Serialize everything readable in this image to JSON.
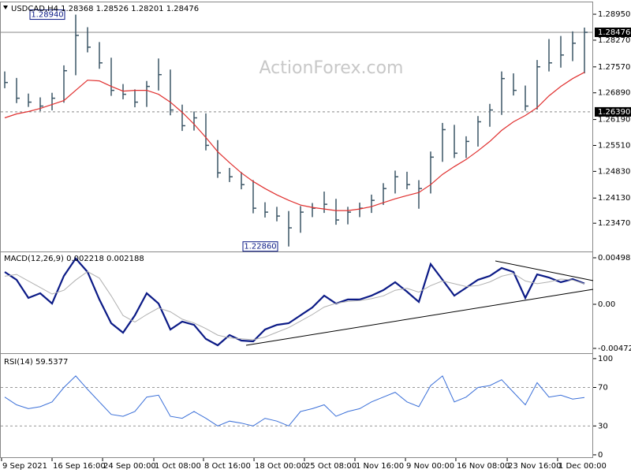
{
  "chart_data": [
    {
      "type": "ohlc",
      "title": "USDCAD,H4  1.28368 1.28526 1.28201 1.28476",
      "watermark": "ActionForex.com",
      "color": "#3b5566",
      "xlim": [
        -0.4,
        49.6
      ],
      "ylim": [
        1.2275,
        1.2922
      ],
      "yticks": [
        {
          "value": 1.2895,
          "label": "1.28950"
        },
        {
          "value": 1.2827,
          "label": "1.28270"
        },
        {
          "value": 1.2757,
          "label": "1.27570"
        },
        {
          "value": 1.2689,
          "label": "1.26890"
        },
        {
          "value": 1.2619,
          "label": "1.26190"
        },
        {
          "value": 1.2551,
          "label": "1.25510"
        },
        {
          "value": 1.2483,
          "label": "1.24830"
        },
        {
          "value": 1.2413,
          "label": "1.24130"
        },
        {
          "value": 1.2347,
          "label": "1.23470"
        }
      ],
      "high": [
        1.2745,
        1.2728,
        1.2687,
        1.2677,
        1.2689,
        1.2761,
        1.2894,
        1.2861,
        1.2822,
        1.2781,
        1.2712,
        1.2698,
        1.272,
        1.2779,
        1.275,
        1.2658,
        1.264,
        1.2635,
        1.2565,
        1.2492,
        1.2481,
        1.246,
        1.2402,
        1.239,
        1.2379,
        1.2392,
        1.24,
        1.243,
        1.2411,
        1.239,
        1.2401,
        1.2422,
        1.2452,
        1.2485,
        1.2482,
        1.246,
        1.2535,
        1.261,
        1.2605,
        1.2575,
        1.2628,
        1.266,
        1.2745,
        1.274,
        1.2708,
        1.2775,
        1.283,
        1.2838,
        1.285,
        1.286
      ],
      "low": [
        1.2701,
        1.2662,
        1.2652,
        1.2641,
        1.2643,
        1.2663,
        1.2735,
        1.2795,
        1.2752,
        1.2681,
        1.2672,
        1.2651,
        1.2652,
        1.2695,
        1.263,
        1.2589,
        1.259,
        1.2538,
        1.2466,
        1.2455,
        1.2436,
        1.2373,
        1.2362,
        1.2352,
        1.2286,
        1.2322,
        1.2363,
        1.2374,
        1.2343,
        1.2344,
        1.2363,
        1.2374,
        1.2395,
        1.2425,
        1.2436,
        1.2385,
        1.2425,
        1.2508,
        1.2518,
        1.2518,
        1.2548,
        1.26,
        1.2631,
        1.2682,
        1.2642,
        1.2645,
        1.2745,
        1.2755,
        1.2772,
        1.274
      ],
      "close": [
        1.2716,
        1.26748,
        1.26645,
        1.26542,
        1.26748,
        1.27469,
        1.28396,
        1.28087,
        1.27675,
        1.26954,
        1.26851,
        1.26645,
        1.27057,
        1.27366,
        1.26439,
        1.26027,
        1.26233,
        1.25512,
        1.24791,
        1.24688,
        1.24482,
        1.23864,
        1.23761,
        1.23658,
        1.23349,
        1.23761,
        1.23864,
        1.23967,
        1.23555,
        1.23761,
        1.23864,
        1.2407,
        1.24379,
        1.24688,
        1.24482,
        1.24379,
        1.25203,
        1.25924,
        1.25306,
        1.25615,
        1.2613,
        1.26439,
        1.27263,
        1.26954,
        1.26542,
        1.27572,
        1.27675,
        1.27881,
        1.2819,
        1.28476
      ],
      "lines": [
        {
          "color": "#e0302f",
          "values": [
            1.26233,
            1.26336,
            1.26398,
            1.2648,
            1.26583,
            1.26686,
            1.26954,
            1.27222,
            1.27202,
            1.27057,
            1.26934,
            1.26954,
            1.26954,
            1.26851,
            1.26645,
            1.26377,
            1.26068,
            1.25718,
            1.25347,
            1.25059,
            1.24791,
            1.24564,
            1.24379,
            1.24214,
            1.2407,
            1.23946,
            1.23885,
            1.23843,
            1.23802,
            1.23802,
            1.23843,
            1.23905,
            1.24008,
            1.24111,
            1.24194,
            1.24276,
            1.24482,
            1.2475,
            1.24956,
            1.25141,
            1.25368,
            1.25615,
            1.25904,
            1.2613,
            1.26295,
            1.26501,
            1.2681,
            1.27057,
            1.27263,
            1.27428
          ]
        }
      ],
      "hlines": [
        {
          "value": 1.28476,
          "label": "1.28476",
          "style": "solid"
        },
        {
          "value": 1.2639,
          "label": "1.26390",
          "style": "dashed"
        }
      ],
      "annotations": [
        {
          "value": 1.2894,
          "label": "1.28940"
        },
        {
          "value": 1.2286,
          "label": "1.22860"
        }
      ]
    },
    {
      "type": "line",
      "title": "MACD(12,26,9) 0.002218 0.002188",
      "xlim": [
        -0.4,
        49.6
      ],
      "ylim": [
        -0.00515,
        0.00557
      ],
      "yticks": [
        0.00498,
        {
          "value": 0,
          "label": "0.00"
        },
        -0.004723
      ],
      "series": [
        {
          "color": "#0b1a86",
          "values": [
            0.00346,
            0.00262,
            0.00068,
            0.00118,
            8e-05,
            0.00304,
            0.0049,
            0.00346,
            0.00051,
            -0.00203,
            -0.00304,
            -0.00118,
            0.00118,
            8e-05,
            -0.0027,
            -0.00186,
            -0.0022,
            -0.00371,
            -0.00439,
            -0.00329,
            -0.00388,
            -0.00397,
            -0.0027,
            -0.0022,
            -0.00203,
            -0.00118,
            -0.00034,
            0.00093,
            8e-05,
            0.00051,
            0.00051,
            0.00093,
            0.00152,
            0.00236,
            0.00135,
            0.00025,
            0.0043,
            0.00262,
            0.00093,
            0.00177,
            0.00262,
            0.00304,
            0.00388,
            0.00346,
            0.00068,
            0.00321,
            0.00287,
            0.00236,
            0.0027,
            0.00222
          ]
        },
        {
          "color": "#b0b0b0",
          "values": [
            0.003,
            0.0032,
            0.0025,
            0.0018,
            0.0011,
            0.0015,
            0.0026,
            0.0035,
            0.0028,
            0.0009,
            -0.0012,
            -0.0019,
            -0.0011,
            -0.0004,
            -0.0008,
            -0.0016,
            -0.002,
            -0.0026,
            -0.0033,
            -0.0036,
            -0.0037,
            -0.0038,
            -0.0035,
            -0.003,
            -0.0025,
            -0.0018,
            -0.0011,
            -0.0003,
            0.0001,
            0.0003,
            0.0004,
            0.0006,
            0.0009,
            0.0015,
            0.0017,
            0.0013,
            0.002,
            0.0025,
            0.0022,
            0.0019,
            0.002,
            0.0024,
            0.003,
            0.0033,
            0.0025,
            0.0022,
            0.0024,
            0.0027,
            0.0026,
            0.00219
          ]
        }
      ]
    },
    {
      "type": "line",
      "title": "RSI(14) 59.5377",
      "xlim": [
        -0.4,
        49.6
      ],
      "ylim": [
        -2.5,
        104
      ],
      "yticks": [
        100,
        70,
        30,
        0
      ],
      "dashed_levels": [
        70,
        30
      ],
      "xticks": [
        {
          "value": -0.27,
          "label": "9 Sep 2021"
        },
        {
          "value": 4,
          "label": "16 Sep 16:00"
        },
        {
          "value": 8.27,
          "label": "24 Sep 00:00"
        },
        {
          "value": 12.6,
          "label": "1 Oct 08:00"
        },
        {
          "value": 16.8,
          "label": "8 Oct 16:00"
        },
        {
          "value": 21.07,
          "label": "18 Oct 00:00"
        },
        {
          "value": 25.33,
          "label": "25 Oct 08:00"
        },
        {
          "value": 29.6,
          "label": "1 Nov 16:00"
        },
        {
          "value": 33.87,
          "label": "9 Nov 00:00"
        },
        {
          "value": 38.13,
          "label": "16 Nov 08:00"
        },
        {
          "value": 42.47,
          "label": "23 Nov 16:00"
        },
        {
          "value": 46.73,
          "label": "1 Dec 00:00"
        }
      ],
      "series": [
        {
          "color": "#3a6fd8",
          "values": [
            60,
            52,
            48,
            50,
            55,
            70,
            82,
            68,
            55,
            42,
            40,
            45,
            60,
            62,
            40,
            38,
            45,
            38,
            30,
            35,
            33,
            30,
            38,
            35,
            30,
            45,
            48,
            52,
            40,
            45,
            48,
            55,
            60,
            65,
            55,
            50,
            72,
            82,
            55,
            60,
            70,
            72,
            78,
            65,
            52,
            75,
            60,
            62,
            58,
            59.5377
          ]
        }
      ]
    }
  ]
}
